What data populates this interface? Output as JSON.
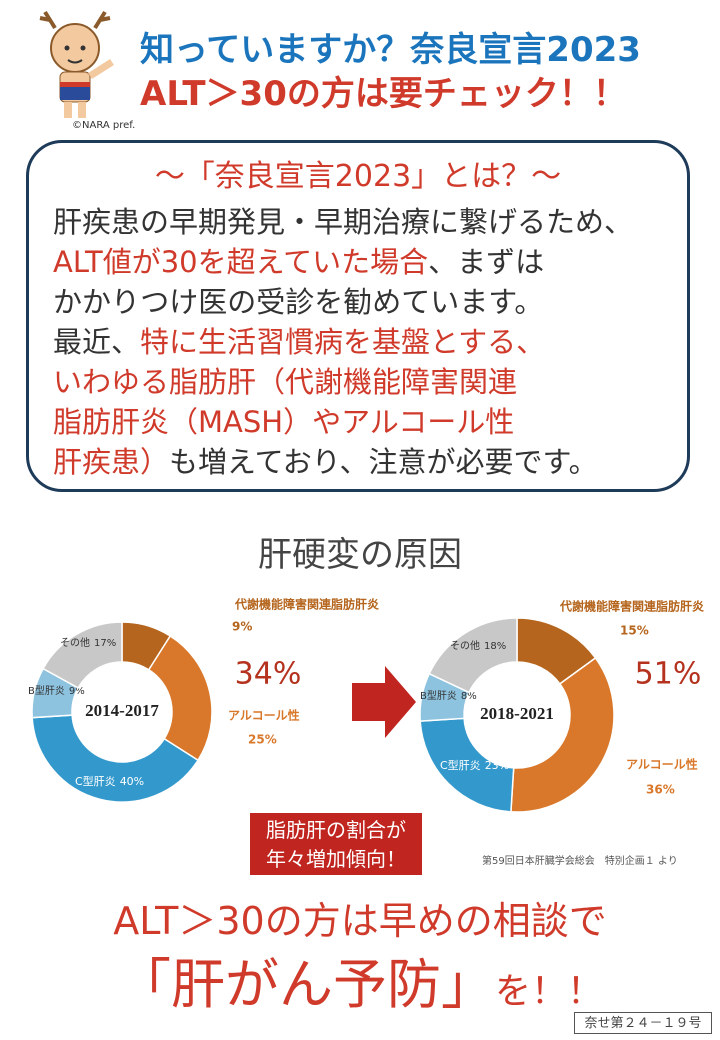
{
  "header": {
    "title_line1": "知っていますか？奈良宣言2023",
    "title_line2": "ALT＞30の方は要チェック！！",
    "credit": "©NARA pref."
  },
  "box": {
    "heading": "～「奈良宣言2023」とは？～",
    "lines": [
      [
        {
          "text": "肝疾患の早期発見・早期治療に繋げるため、"
        }
      ],
      [
        {
          "text": "ALT値が30を超えていた場合",
          "red": true
        },
        {
          "text": "、まずは"
        }
      ],
      [
        {
          "text": "かかりつけ医の受診を勧めています。"
        }
      ],
      [
        {
          "text": "最近、"
        },
        {
          "text": "特に生活習慣病を基盤とする、",
          "red": true
        }
      ],
      [
        {
          "text": "いわゆる脂肪肝（代謝機能障害関連",
          "red": true
        }
      ],
      [
        {
          "text": "脂肪肝炎（MASH）やアルコール性",
          "red": true
        }
      ],
      [
        {
          "text": "肝疾患）",
          "red": true
        },
        {
          "text": "も増えており、注意が必要です。"
        }
      ]
    ]
  },
  "section_title": "肝硬変の原因",
  "charts": [
    {
      "type": "donut",
      "center_label": "2014-2017",
      "highlight_label": "34%",
      "categories": [
        "代謝機能障害関連脂肪肝炎",
        "アルコール性",
        "C型肝炎",
        "B型肝炎",
        "その他"
      ],
      "values": [
        9,
        25,
        40,
        9,
        17
      ],
      "value_labels": [
        "9%",
        "25%",
        "40%",
        "9%",
        "17%"
      ],
      "colors": [
        "#b5651d",
        "#d9782a",
        "#3399cc",
        "#8ec3e0",
        "#c8c8c8"
      ]
    },
    {
      "type": "donut",
      "center_label": "2018-2021",
      "highlight_label": "51%",
      "categories": [
        "代謝機能障害関連脂肪肝炎",
        "アルコール性",
        "C型肝炎",
        "B型肝炎",
        "その他"
      ],
      "values": [
        15,
        36,
        23,
        8,
        18
      ],
      "value_labels": [
        "15%",
        "36%",
        "23%",
        "8%",
        "18%"
      ],
      "colors": [
        "#b5651d",
        "#d9782a",
        "#3399cc",
        "#8ec3e0",
        "#c8c8c8"
      ]
    }
  ],
  "callout": {
    "lines": [
      "脂肪肝の割合が",
      "年々増加傾向！"
    ]
  },
  "source": "第59回日本肝臓学会総会　特別企画１ より",
  "footer": {
    "line1": "ALT＞30の方は早めの相談で",
    "line2_main": "「肝がん予防」",
    "line2_tail": "を！！"
  },
  "code": "奈せ第２４－１９号"
}
